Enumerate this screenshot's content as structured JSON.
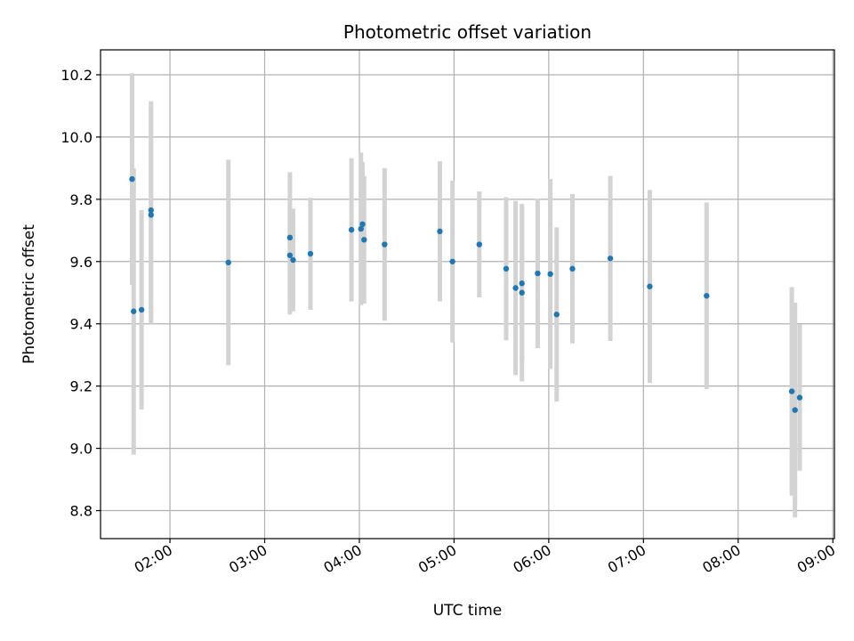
{
  "chart_data": {
    "type": "scatter",
    "title": "Photometric offset variation",
    "xlabel": "UTC time",
    "ylabel": "Photometric offset",
    "x_axis_type": "time",
    "xlim": [
      "01:16",
      "09:01"
    ],
    "ylim": [
      8.71,
      10.28
    ],
    "xticks": [
      "02:00",
      "03:00",
      "04:00",
      "05:00",
      "06:00",
      "07:00",
      "08:00",
      "09:00"
    ],
    "yticks": [
      8.8,
      9.0,
      9.2,
      9.4,
      9.6,
      9.8,
      10.0,
      10.2
    ],
    "grid": true,
    "point_color": "#1f77b4",
    "errorbar_color": "#d3d3d3",
    "points": [
      {
        "x": "01:36",
        "y": 9.865,
        "err": 0.34
      },
      {
        "x": "01:37",
        "y": 9.44,
        "err": 0.46
      },
      {
        "x": "01:42",
        "y": 9.445,
        "err": 0.32
      },
      {
        "x": "01:48",
        "y": 9.765,
        "err": 0.35
      },
      {
        "x": "01:48",
        "y": 9.75,
        "err": 0.35
      },
      {
        "x": "02:37",
        "y": 9.597,
        "err": 0.33
      },
      {
        "x": "03:16",
        "y": 9.677,
        "err": 0.21
      },
      {
        "x": "03:16",
        "y": 9.62,
        "err": 0.19
      },
      {
        "x": "03:18",
        "y": 9.605,
        "err": 0.165
      },
      {
        "x": "03:29",
        "y": 9.625,
        "err": 0.18
      },
      {
        "x": "03:55",
        "y": 9.702,
        "err": 0.23
      },
      {
        "x": "04:01",
        "y": 9.705,
        "err": 0.245
      },
      {
        "x": "04:02",
        "y": 9.72,
        "err": 0.2
      },
      {
        "x": "04:03",
        "y": 9.67,
        "err": 0.205
      },
      {
        "x": "04:16",
        "y": 9.655,
        "err": 0.245
      },
      {
        "x": "04:51",
        "y": 9.697,
        "err": 0.225
      },
      {
        "x": "04:59",
        "y": 9.6,
        "err": 0.26
      },
      {
        "x": "05:16",
        "y": 9.655,
        "err": 0.17
      },
      {
        "x": "05:33",
        "y": 9.577,
        "err": 0.23
      },
      {
        "x": "05:39",
        "y": 9.515,
        "err": 0.28
      },
      {
        "x": "05:43",
        "y": 9.53,
        "err": 0.25
      },
      {
        "x": "05:43",
        "y": 9.5,
        "err": 0.285
      },
      {
        "x": "05:53",
        "y": 9.562,
        "err": 0.24
      },
      {
        "x": "06:01",
        "y": 9.56,
        "err": 0.305
      },
      {
        "x": "06:05",
        "y": 9.43,
        "err": 0.28
      },
      {
        "x": "06:15",
        "y": 9.577,
        "err": 0.24
      },
      {
        "x": "06:39",
        "y": 9.61,
        "err": 0.265
      },
      {
        "x": "07:04",
        "y": 9.52,
        "err": 0.31
      },
      {
        "x": "07:40",
        "y": 9.49,
        "err": 0.3
      },
      {
        "x": "08:34",
        "y": 9.183,
        "err": 0.335
      },
      {
        "x": "08:36",
        "y": 9.123,
        "err": 0.345
      },
      {
        "x": "08:39",
        "y": 9.163,
        "err": 0.235
      }
    ]
  }
}
